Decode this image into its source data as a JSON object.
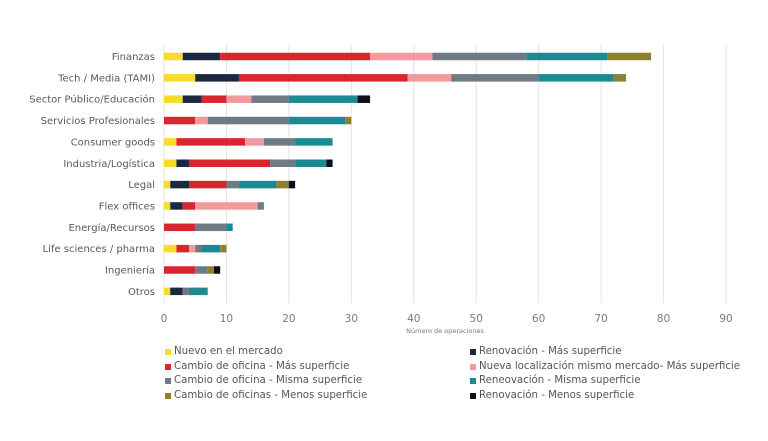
{
  "chart_data": {
    "type": "bar",
    "orientation": "horizontal",
    "stacked": true,
    "title": "",
    "xlabel": "Número de operaciones",
    "ylabel": "",
    "xlim": [
      0,
      90
    ],
    "xticks": [
      0,
      10,
      20,
      30,
      40,
      50,
      60,
      70,
      80,
      90
    ],
    "grid": true,
    "legend_position": "bottom",
    "categories": [
      "Finanzas",
      "Tech / Media (TAMI)",
      "Sector Público/Educación",
      "Servicios Profesionales",
      "Consumer goods",
      "Industria/Logística",
      "Legal",
      "Flex offices",
      "Energía/Recursos",
      "Life sciences / pharma",
      "Ingeniería",
      "Otros"
    ],
    "series": [
      {
        "name": "Nuevo en el mercado",
        "color": "#f7dc2a",
        "values": [
          3,
          5,
          3,
          0,
          2,
          2,
          1,
          1,
          0,
          2,
          0,
          1
        ]
      },
      {
        "name": "Renovación - Más superficie",
        "color": "#1c2840",
        "values": [
          6,
          7,
          3,
          0,
          0,
          2,
          3,
          2,
          0,
          0,
          0,
          2
        ]
      },
      {
        "name": "Cambio de oficina - Más superficie",
        "color": "#d7262e",
        "values": [
          24,
          27,
          4,
          5,
          11,
          13,
          6,
          2,
          5,
          2,
          5,
          0
        ]
      },
      {
        "name": "Nueva localización mismo mercado- Más superficie",
        "color": "#f39a9e",
        "values": [
          10,
          7,
          4,
          2,
          3,
          0,
          0,
          10,
          0,
          1,
          0,
          0
        ]
      },
      {
        "name": "Cambio de oficina - Misma superficie",
        "color": "#6e7b85",
        "values": [
          15,
          14,
          6,
          13,
          5,
          4,
          2,
          1,
          5,
          1,
          2,
          1
        ]
      },
      {
        "name": "Reneovación - Misma superficie",
        "color": "#1b8a93",
        "values": [
          13,
          12,
          11,
          9,
          6,
          5,
          6,
          0,
          1,
          3,
          0,
          3
        ]
      },
      {
        "name": "Cambio de oficinas - Menos superficie",
        "color": "#8d8030",
        "values": [
          7,
          2,
          0,
          1,
          0,
          0,
          2,
          0,
          0,
          1,
          1,
          0
        ]
      },
      {
        "name": "Renovación - Menos superficie",
        "color": "#0d0f1e",
        "values": [
          0,
          0,
          2,
          0,
          0,
          1,
          1,
          0,
          0,
          0,
          1,
          0
        ]
      }
    ],
    "legend_order": [
      0,
      1,
      2,
      3,
      4,
      5,
      6,
      7
    ]
  }
}
